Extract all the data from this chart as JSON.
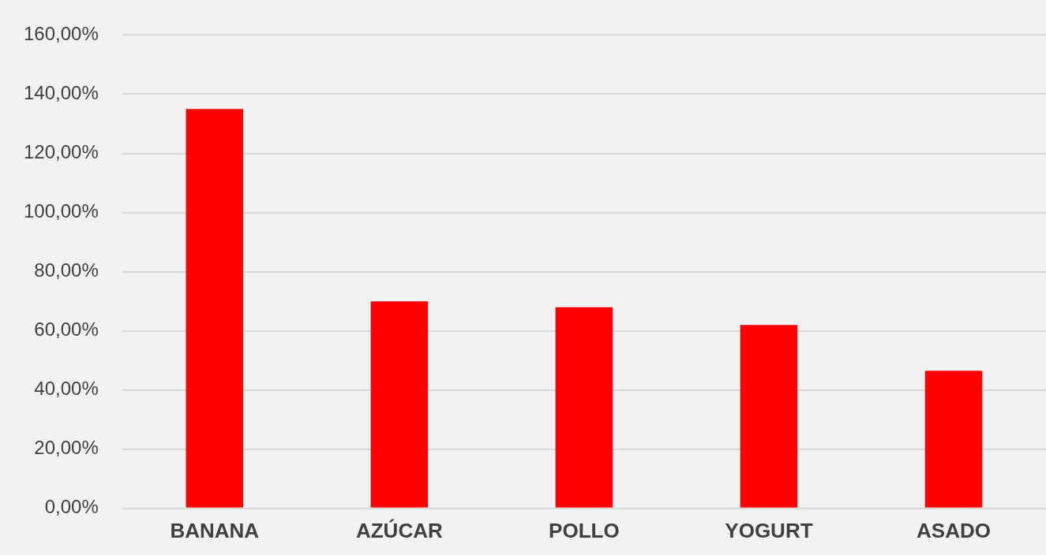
{
  "chart_data": {
    "type": "bar",
    "categories": [
      "BANANA",
      "AZÚCAR",
      "POLLO",
      "YOGURT",
      "ASADO"
    ],
    "values": [
      135,
      70,
      68,
      62,
      46.5
    ],
    "color": "#ff0000",
    "ylim": [
      0,
      160
    ],
    "yticks": [
      {
        "value": 0,
        "label": "0,00%"
      },
      {
        "value": 20,
        "label": "20,00%"
      },
      {
        "value": 40,
        "label": "40,00%"
      },
      {
        "value": 60,
        "label": "60,00%"
      },
      {
        "value": 80,
        "label": "80,00%"
      },
      {
        "value": 100,
        "label": "100,00%"
      },
      {
        "value": 120,
        "label": "120,00%"
      },
      {
        "value": 140,
        "label": "140,00%"
      },
      {
        "value": 160,
        "label": "160,00%"
      }
    ],
    "grid": "y"
  }
}
